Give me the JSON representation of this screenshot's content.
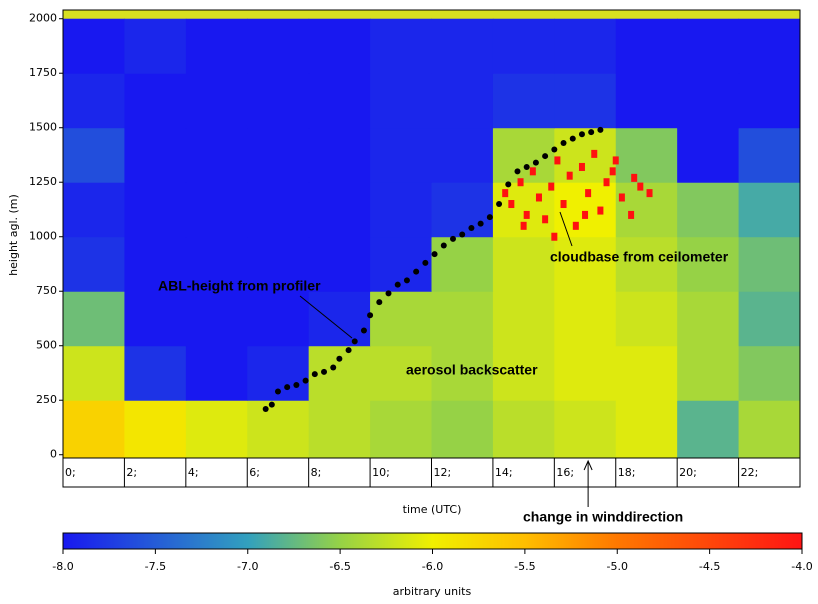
{
  "chart_data": {
    "type": "heatmap",
    "xlabel": "time (UTC)",
    "ylabel": "height agl. (m)",
    "xlim": [
      0,
      24
    ],
    "ylim": [
      -15,
      2040
    ],
    "xticks": [
      {
        "value": 0,
        "label": "0;"
      },
      {
        "value": 2,
        "label": "2;"
      },
      {
        "value": 4,
        "label": "4;"
      },
      {
        "value": 6,
        "label": "6;"
      },
      {
        "value": 8,
        "label": "8;"
      },
      {
        "value": 10,
        "label": "10;"
      },
      {
        "value": 12,
        "label": "12;"
      },
      {
        "value": 14,
        "label": "14;"
      },
      {
        "value": 16,
        "label": "16;"
      },
      {
        "value": 18,
        "label": "18;"
      },
      {
        "value": 20,
        "label": "20;"
      },
      {
        "value": 22,
        "label": "22;"
      }
    ],
    "yticks": [
      0,
      250,
      500,
      750,
      1000,
      1250,
      1500,
      1750,
      2000
    ],
    "xbins": [
      0,
      2,
      4,
      6,
      8,
      10,
      12,
      14,
      16,
      18,
      20,
      22,
      24
    ],
    "ybins": [
      0,
      250,
      500,
      750,
      1000,
      1250,
      1500,
      1750,
      2000
    ],
    "z": [
      [
        -5.7,
        -5.9,
        -6.1,
        -6.2,
        -6.3,
        -6.4,
        -6.5,
        -6.3,
        -6.2,
        -6.1,
        -6.8,
        -6.4
      ],
      [
        -6.2,
        -7.8,
        -8.0,
        -7.9,
        -6.3,
        -6.3,
        -6.4,
        -6.2,
        -6.1,
        -6.1,
        -6.4,
        -6.6
      ],
      [
        -6.7,
        -8.0,
        -8.0,
        -8.0,
        -7.9,
        -6.4,
        -6.4,
        -6.2,
        -6.1,
        -6.2,
        -6.4,
        -6.8
      ],
      [
        -7.8,
        -8.0,
        -8.0,
        -8.0,
        -8.0,
        -7.9,
        -6.5,
        -6.2,
        -6.1,
        -6.3,
        -6.5,
        -6.7
      ],
      [
        -7.9,
        -8.0,
        -8.0,
        -8.0,
        -8.0,
        -7.9,
        -7.8,
        -6.1,
        -6.0,
        -6.4,
        -6.6,
        -6.9
      ],
      [
        -7.6,
        -8.0,
        -8.0,
        -8.0,
        -8.0,
        -7.9,
        -7.9,
        -6.4,
        -6.2,
        -6.6,
        -8.0,
        -7.6
      ],
      [
        -7.9,
        -8.0,
        -8.0,
        -8.0,
        -8.0,
        -7.9,
        -7.9,
        -7.8,
        -7.8,
        -8.0,
        -8.0,
        -8.0
      ],
      [
        -8.0,
        -7.9,
        -8.0,
        -8.0,
        -8.0,
        -7.9,
        -7.9,
        -7.9,
        -7.9,
        -8.0,
        -8.0,
        -8.0
      ]
    ],
    "colorlim": [
      -8,
      -4
    ],
    "colorticks": [
      {
        "value": -8,
        "label": "-8.0"
      },
      {
        "value": -7.5,
        "label": "-7.5"
      },
      {
        "value": -7,
        "label": "-7.0"
      },
      {
        "value": -6.5,
        "label": "-6.5"
      },
      {
        "value": -6,
        "label": "-6.0"
      },
      {
        "value": -5.5,
        "label": "-5.5"
      },
      {
        "value": -5,
        "label": "-5.0"
      },
      {
        "value": -4.5,
        "label": "-4.5"
      },
      {
        "value": -4,
        "label": "-4.0"
      }
    ],
    "colorlabel": "arbitrary units",
    "series": [
      {
        "name": "ABL-height from profiler",
        "color": "#000000",
        "x": [
          6.6,
          6.8,
          7.0,
          7.3,
          7.6,
          7.9,
          8.2,
          8.5,
          8.8,
          9.0,
          9.3,
          9.5,
          9.8,
          10.0,
          10.3,
          10.6,
          10.9,
          11.2,
          11.5,
          11.8,
          12.1,
          12.4,
          12.7,
          13.0,
          13.3,
          13.6,
          13.9,
          14.2,
          14.5,
          14.8,
          15.1,
          15.4,
          15.7,
          16.0,
          16.3,
          16.6,
          16.9,
          17.2,
          17.5
        ],
        "values": [
          210,
          230,
          290,
          310,
          320,
          340,
          370,
          380,
          400,
          440,
          480,
          520,
          570,
          640,
          700,
          740,
          780,
          800,
          840,
          880,
          920,
          960,
          990,
          1010,
          1040,
          1060,
          1090,
          1150,
          1240,
          1300,
          1320,
          1340,
          1370,
          1400,
          1430,
          1450,
          1470,
          1480,
          1490
        ]
      },
      {
        "name": "cloudbase from ceilometer",
        "color": "#ff1010",
        "x": [
          14.4,
          14.6,
          14.9,
          15.1,
          15.3,
          15.5,
          15.7,
          15.9,
          16.1,
          16.3,
          16.5,
          16.7,
          16.9,
          17.1,
          17.3,
          17.5,
          17.7,
          17.9,
          18.2,
          18.5,
          18.8,
          19.1,
          15.0,
          16.0,
          17.0,
          18.0,
          18.6
        ],
        "values": [
          1200,
          1150,
          1250,
          1100,
          1300,
          1180,
          1080,
          1230,
          1350,
          1150,
          1280,
          1050,
          1320,
          1200,
          1380,
          1120,
          1250,
          1300,
          1180,
          1100,
          1230,
          1200,
          1050,
          1000,
          1100,
          1350,
          1270
        ]
      }
    ],
    "annotations": [
      {
        "text": "aerosol backscatter"
      },
      {
        "text": "change in winddirection",
        "x": 17.1
      }
    ]
  }
}
